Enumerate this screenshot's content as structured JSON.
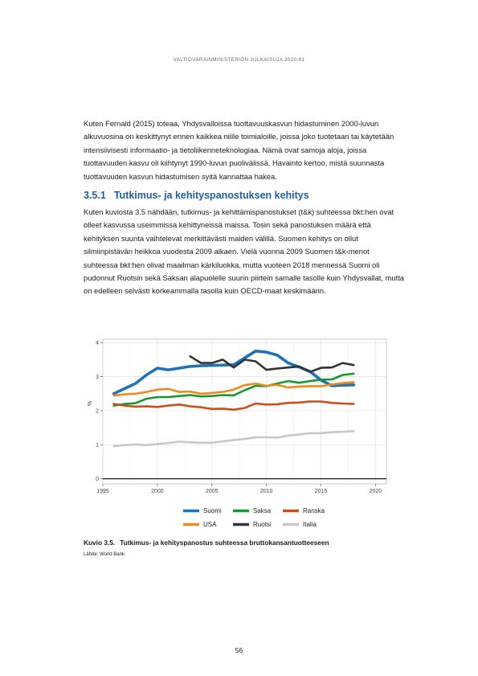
{
  "header": {
    "running_head": "VALTIOVARAINMINISTERIÖN JULKAISUJA 2020:81"
  },
  "body": {
    "paragraph_1": "Kuten Fernald (2015) toteaa, Yhdysvalloissa tuottavuuskasvun hidastuminen 2000-luvun alkuvuosina on keskittynyt ennen kaikkea niille toimialoille, joissa joko tuotetaan tai käytetään intensiivisesti informaatio- ja tietoliikenneteknologiaa. Nämä ovat samoja aloja, joissa tuottavuuden kasvu oli kiihtynyt 1990-luvun puolivälissä. Havainto kertoo, mistä suunnasta tuottavuuden kasvun hidastumisen syitä kannattaa hakea.",
    "section_number": "3.5.1",
    "section_title": "Tutkimus- ja kehityspanostuksen kehitys",
    "paragraph_2": "Kuten kuviosta 3.5 nähdään, tutkimus- ja kehittämispanostukset (t&k) suhteessa bkt:hen ovat olleet kasvussa useimmissa kehittyneissä maissa. Tosin sekä panostuksen määrä että kehityksen suunta vaihtelevat merkittävästi maiden välillä. Suomen kehitys on ollut silmiinpistävän heikkoa vuodesta 2009 alkaen. Vielä vuonna 2009 Suomen t&k-menot suhteessa bkt:hen olivat maailman kärkiluokka, mutta vuoteen 2018 mennessä Suomi oli pudonnut Ruotsin sekä Saksan alapuolelle suurin piirtein samalle tasolle kuin Yhdysvallat, mutta on edelleen selvästi korkeammalla tasolla kuin OECD-maat keskimäärin."
  },
  "figure": {
    "label": "Kuvio 3.5.",
    "caption": "Tutkimus- ja kehityspanostus suhteessa bruttokansantuotteeseen",
    "source": "Lähde: World Bank"
  },
  "page_number": "56",
  "chart_data": {
    "type": "line",
    "ylabel": "%",
    "xlabel": "",
    "xlim": [
      1995,
      2021
    ],
    "ylim": [
      -0.15,
      4.1
    ],
    "x_ticks": [
      1995,
      2000,
      2005,
      2010,
      2015,
      2020
    ],
    "y_ticks": [
      0,
      1,
      2,
      3,
      4
    ],
    "grid": true,
    "legend_position": "bottom",
    "series": [
      {
        "name": "Suomi",
        "color": "#1f72b8",
        "x": [
          1996,
          1997,
          1998,
          1999,
          2000,
          2001,
          2002,
          2003,
          2004,
          2005,
          2006,
          2007,
          2008,
          2009,
          2010,
          2011,
          2012,
          2013,
          2014,
          2015,
          2016,
          2017,
          2018
        ],
        "y": [
          2.5,
          2.65,
          2.8,
          3.05,
          3.25,
          3.2,
          3.25,
          3.3,
          3.32,
          3.33,
          3.34,
          3.35,
          3.55,
          3.75,
          3.72,
          3.63,
          3.4,
          3.28,
          3.15,
          2.9,
          2.73,
          2.75,
          2.76
        ]
      },
      {
        "name": "Saksa",
        "color": "#1a9632",
        "x": [
          1996,
          1997,
          1998,
          1999,
          2000,
          2001,
          2002,
          2003,
          2004,
          2005,
          2006,
          2007,
          2008,
          2009,
          2010,
          2011,
          2012,
          2013,
          2014,
          2015,
          2016,
          2017,
          2018
        ],
        "y": [
          2.15,
          2.2,
          2.22,
          2.35,
          2.4,
          2.4,
          2.43,
          2.46,
          2.42,
          2.43,
          2.46,
          2.45,
          2.6,
          2.73,
          2.72,
          2.8,
          2.87,
          2.82,
          2.87,
          2.91,
          2.92,
          3.05,
          3.09
        ]
      },
      {
        "name": "Ranska",
        "color": "#c8501e",
        "x": [
          1996,
          1997,
          1998,
          1999,
          2000,
          2001,
          2002,
          2003,
          2004,
          2005,
          2006,
          2007,
          2008,
          2009,
          2010,
          2011,
          2012,
          2013,
          2014,
          2015,
          2016,
          2017,
          2018
        ],
        "y": [
          2.2,
          2.15,
          2.12,
          2.13,
          2.11,
          2.15,
          2.18,
          2.13,
          2.1,
          2.05,
          2.06,
          2.03,
          2.08,
          2.21,
          2.18,
          2.19,
          2.23,
          2.24,
          2.27,
          2.27,
          2.23,
          2.21,
          2.2
        ]
      },
      {
        "name": "USA",
        "color": "#ef8a1e",
        "x": [
          1996,
          1997,
          1998,
          1999,
          2000,
          2001,
          2002,
          2003,
          2004,
          2005,
          2006,
          2007,
          2008,
          2009,
          2010,
          2011,
          2012,
          2013,
          2014,
          2015,
          2016,
          2017,
          2018
        ],
        "y": [
          2.45,
          2.48,
          2.5,
          2.55,
          2.62,
          2.64,
          2.55,
          2.56,
          2.5,
          2.52,
          2.55,
          2.62,
          2.75,
          2.8,
          2.73,
          2.76,
          2.68,
          2.71,
          2.72,
          2.72,
          2.77,
          2.81,
          2.84
        ]
      },
      {
        "name": "Ruotsi",
        "color": "#333333",
        "x": [
          2003,
          2004,
          2005,
          2006,
          2007,
          2008,
          2009,
          2010,
          2011,
          2012,
          2013,
          2014,
          2015,
          2016,
          2017,
          2018
        ],
        "y": [
          3.6,
          3.4,
          3.4,
          3.5,
          3.27,
          3.5,
          3.45,
          3.2,
          3.24,
          3.27,
          3.3,
          3.14,
          3.26,
          3.27,
          3.4,
          3.34
        ]
      },
      {
        "name": "Italia",
        "color": "#c8c8c8",
        "x": [
          1996,
          1997,
          1998,
          1999,
          2000,
          2001,
          2002,
          2003,
          2004,
          2005,
          2006,
          2007,
          2008,
          2009,
          2010,
          2011,
          2012,
          2013,
          2014,
          2015,
          2016,
          2017,
          2018
        ],
        "y": [
          0.96,
          0.99,
          1.01,
          0.99,
          1.02,
          1.05,
          1.09,
          1.07,
          1.06,
          1.06,
          1.1,
          1.14,
          1.17,
          1.22,
          1.22,
          1.21,
          1.27,
          1.3,
          1.34,
          1.34,
          1.37,
          1.38,
          1.4
        ]
      }
    ]
  }
}
